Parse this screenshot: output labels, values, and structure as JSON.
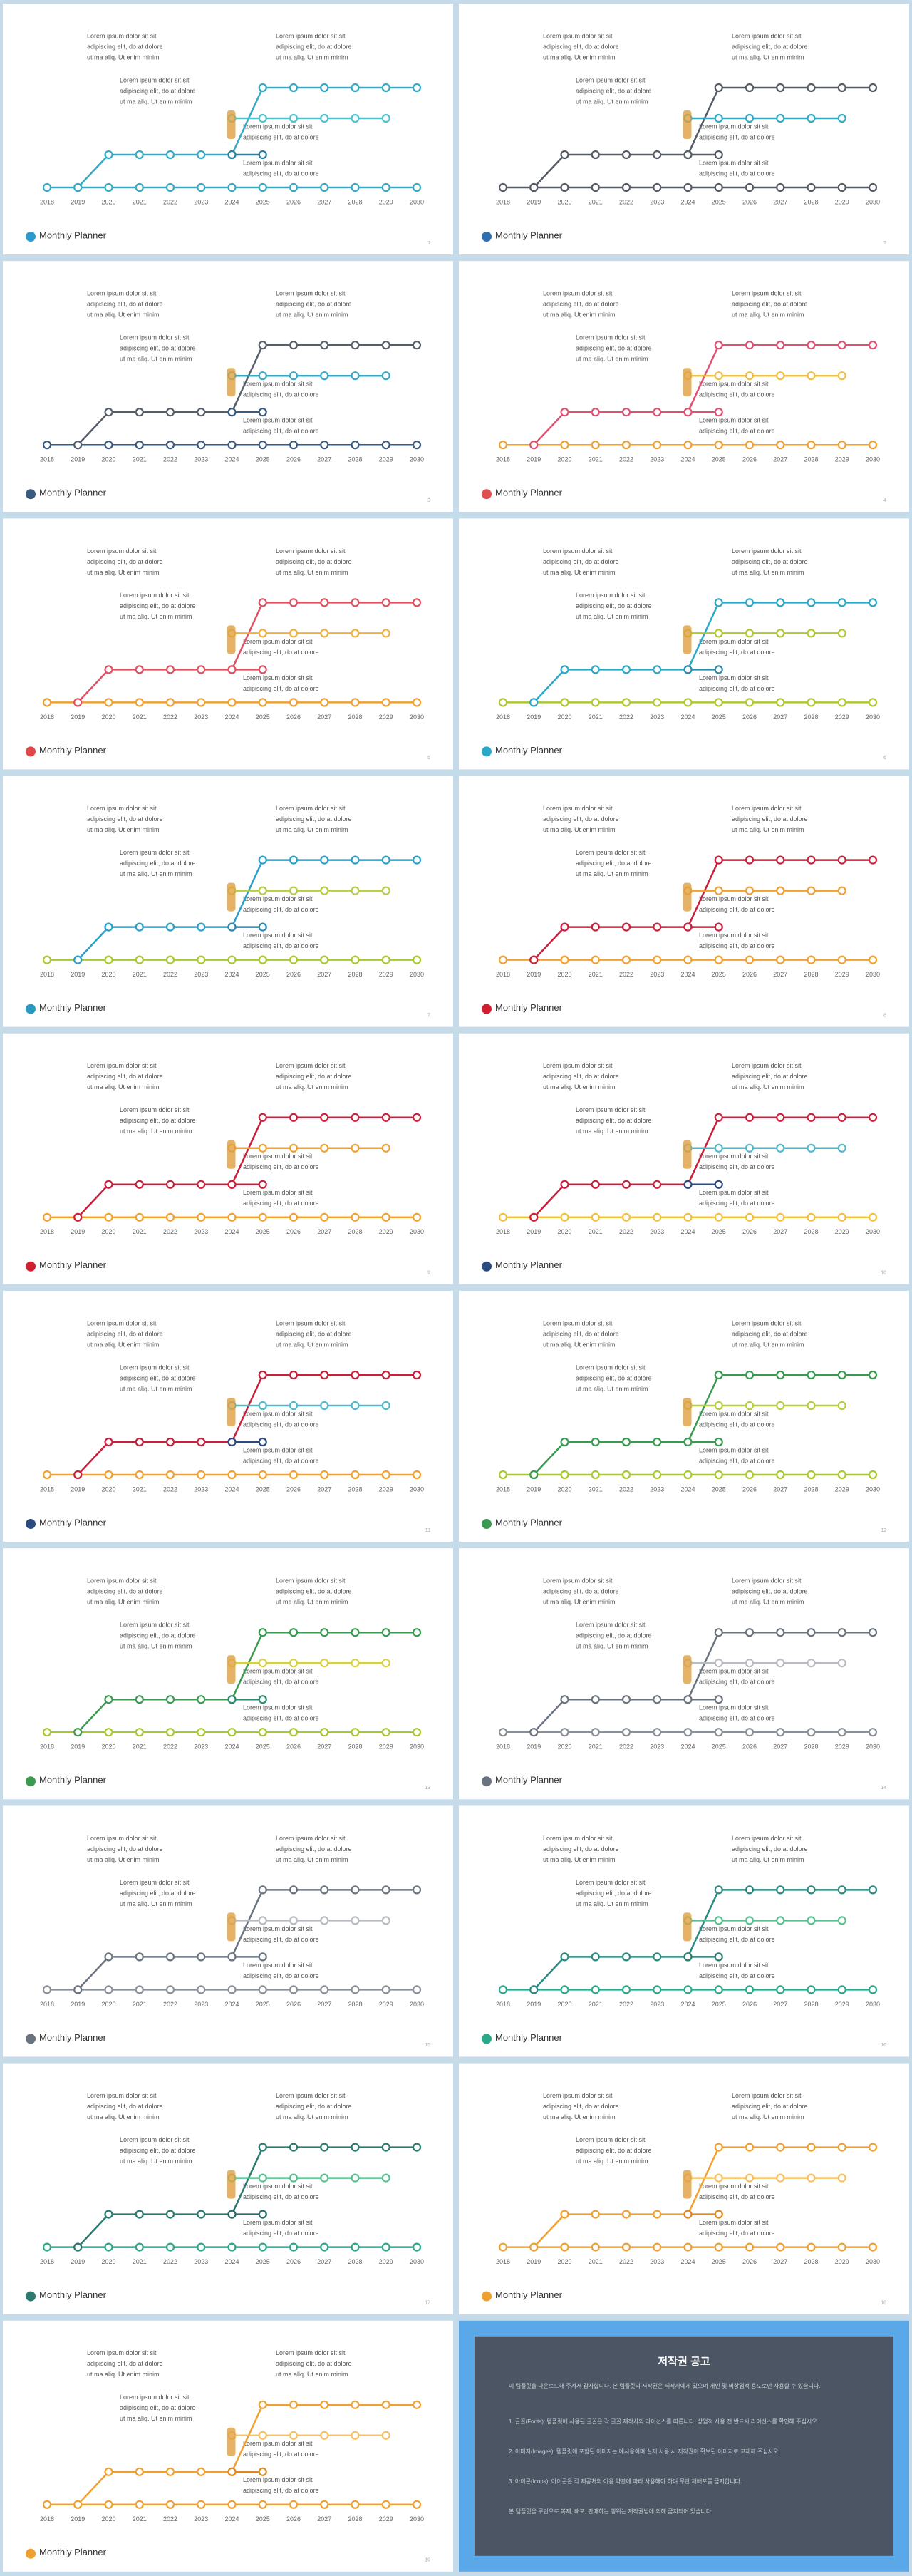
{
  "slide_template": {
    "text_blocks": [
      {
        "lines": [
          "Lorem ipsum dolor sit sit",
          "adipiscing elit, do at dolore",
          "ut ma aliq. Ut enim minim"
        ]
      },
      {
        "lines": [
          "Lorem ipsum dolor sit sit",
          "adipiscing elit, do at dolore",
          "ut ma aliq. Ut enim minim"
        ]
      },
      {
        "lines": [
          "Lorem ipsum dolor sit sit",
          "adipiscing elit, do at dolore",
          "ut ma aliq. Ut enim minim"
        ]
      },
      {
        "lines": [
          "Lorem ipsum dolor sit sit",
          "adipiscing elit, do at dolore"
        ]
      },
      {
        "lines": [
          "Lorem ipsum dolor sit sit",
          "adipiscing elit, do at dolore"
        ]
      }
    ],
    "years": [
      2018,
      2019,
      2020,
      2021,
      2022,
      2023,
      2024,
      2025,
      2026,
      2027,
      2028,
      2029,
      2030
    ],
    "footer_title": "Monthly Planner"
  },
  "slides": [
    {
      "page": 1,
      "colors": [
        "#36a9c4",
        "#36a9c4",
        "#52c2cf",
        "#2b7fa0",
        "#2a9ad0"
      ]
    },
    {
      "page": 2,
      "colors": [
        "#555c66",
        "#555c66",
        "#36a9c4",
        "#555c66",
        "#2e6fb0"
      ]
    },
    {
      "page": 3,
      "colors": [
        "#3a5a80",
        "#555e6b",
        "#36a9c4",
        "#3a5a80",
        "#3a5a80"
      ]
    },
    {
      "page": 4,
      "colors": [
        "#f0a030",
        "#e05070",
        "#f0c040",
        "#e05070",
        "#e05050"
      ]
    },
    {
      "page": 5,
      "colors": [
        "#f0a030",
        "#e05060",
        "#f0b040",
        "#e05060",
        "#e04848"
      ]
    },
    {
      "page": 6,
      "colors": [
        "#b0c830",
        "#2aa8c8",
        "#b0c830",
        "#2a8aa8",
        "#2aa8c8"
      ]
    },
    {
      "page": 7,
      "colors": [
        "#a8c830",
        "#2aa0c8",
        "#b8cc40",
        "#2a88b0",
        "#2a9ac0"
      ]
    },
    {
      "page": 8,
      "colors": [
        "#f0a030",
        "#c8203a",
        "#f0a030",
        "#c8203a",
        "#d02030"
      ]
    },
    {
      "page": 9,
      "colors": [
        "#f0a030",
        "#c8203a",
        "#f0a030",
        "#c8203a",
        "#d02030"
      ]
    },
    {
      "page": 10,
      "colors": [
        "#f0c040",
        "#c8203a",
        "#52b8c8",
        "#2a4a80",
        "#2a4a80"
      ]
    },
    {
      "page": 11,
      "colors": [
        "#f0a030",
        "#c8203a",
        "#52b8c8",
        "#2a4a80",
        "#2a4a80"
      ]
    },
    {
      "page": 12,
      "colors": [
        "#a8c830",
        "#3a9a50",
        "#b8cc40",
        "#3a9a50",
        "#3a9a50"
      ]
    },
    {
      "page": 13,
      "colors": [
        "#a8c830",
        "#3a9a50",
        "#d8d040",
        "#2a8a70",
        "#3a9a50"
      ]
    },
    {
      "page": 14,
      "colors": [
        "#8a9098",
        "#6a7480",
        "#b8bcc2",
        "#6a7480",
        "#6a7480"
      ]
    },
    {
      "page": 15,
      "colors": [
        "#8a9098",
        "#6a7480",
        "#b8bcc2",
        "#6a7480",
        "#6a7480"
      ]
    },
    {
      "page": 16,
      "colors": [
        "#2aa88a",
        "#2a8a80",
        "#5ac090",
        "#2a7a70",
        "#2aa88a"
      ]
    },
    {
      "page": 17,
      "colors": [
        "#2aa88a",
        "#2a7a70",
        "#5ac090",
        "#2a6a68",
        "#2a7a70"
      ]
    },
    {
      "page": 18,
      "colors": [
        "#f0a030",
        "#f0a030",
        "#f8c060",
        "#e08820",
        "#f0a030"
      ]
    },
    {
      "page": 19,
      "colors": [
        "#f0a030",
        "#f0a030",
        "#f8c060",
        "#e08820",
        "#f0a030"
      ]
    }
  ],
  "notice": {
    "title": "저작권 공고",
    "paragraphs": [
      "이 템플릿을 다운로드해 주셔서 감사합니다. 본 템플릿의 저작권은 제작자에게 있으며 개인 및 비상업적 용도로만 사용할 수 있습니다.",
      "1. 글꼴(Fonts): 템플릿에 사용된 글꼴은 각 글꼴 제작사의 라이선스를 따릅니다. 상업적 사용 전 반드시 라이선스를 확인해 주십시오.",
      "2. 이미지(Images): 템플릿에 포함된 이미지는 예시용이며 실제 사용 시 저작권이 확보된 이미지로 교체해 주십시오.",
      "3. 아이콘(Icons): 아이콘은 각 제공처의 이용 약관에 따라 사용해야 하며 무단 재배포를 금지합니다.",
      "본 템플릿을 무단으로 복제, 배포, 판매하는 행위는 저작권법에 의해 금지되어 있습니다."
    ]
  }
}
